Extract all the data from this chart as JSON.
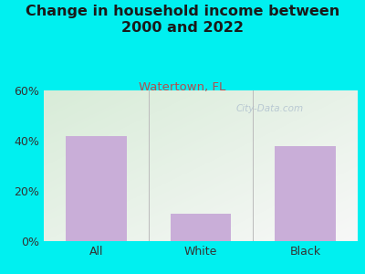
{
  "title": "Change in household income between\n2000 and 2022",
  "subtitle": "Watertown, FL",
  "categories": [
    "All",
    "White",
    "Black"
  ],
  "values": [
    42,
    11,
    38
  ],
  "bar_color": "#c9aed8",
  "title_fontsize": 11.5,
  "subtitle_fontsize": 9.5,
  "subtitle_color": "#b05050",
  "tick_label_fontsize": 9,
  "ylim": [
    0,
    60
  ],
  "yticks": [
    0,
    20,
    40,
    60
  ],
  "ytick_labels": [
    "0%",
    "20%",
    "40%",
    "60%"
  ],
  "background_outer": "#00f0f0",
  "plot_bg_topleft": "#d8ecd8",
  "plot_bg_bottomright": "#f8f8f8",
  "watermark": "City-Data.com",
  "watermark_color": "#aabbcc"
}
